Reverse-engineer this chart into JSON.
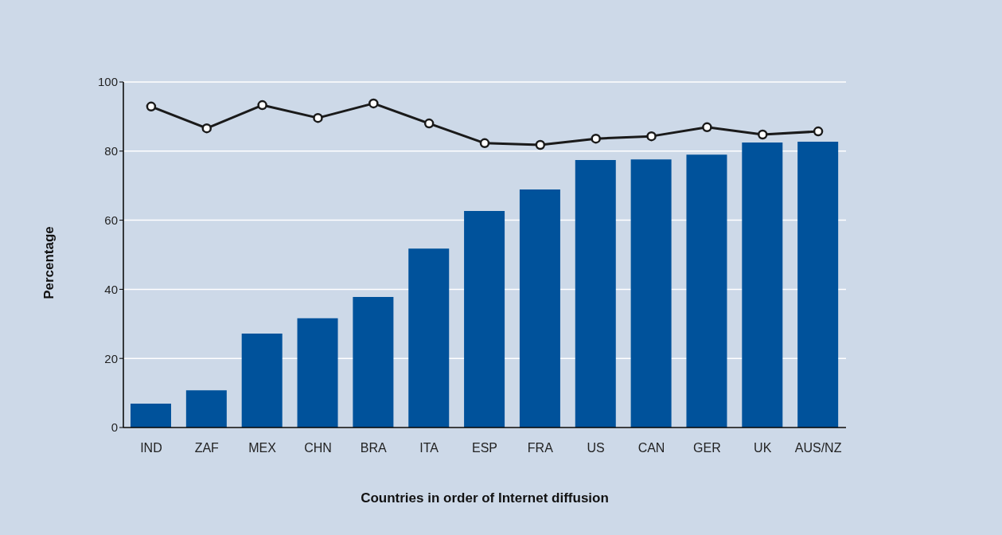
{
  "chart_data": {
    "type": "bar",
    "xlabel": "Countries in order of Internet diffusion",
    "ylabel": "Percentage",
    "categories": [
      "IND",
      "ZAF",
      "MEX",
      "CHN",
      "BRA",
      "ITA",
      "ESP",
      "FRA",
      "US",
      "CAN",
      "GER",
      "UK",
      "AUS/NZ"
    ],
    "series": [
      {
        "color": "#00529b",
        "values": [
          6.9,
          10.8,
          27.2,
          31.6,
          37.8,
          51.8,
          62.7,
          68.9,
          77.4,
          77.6,
          79.0,
          82.5,
          82.7
        ]
      },
      {
        "type": "line",
        "color": "#1a1a1a",
        "values": [
          92.9,
          86.6,
          93.3,
          89.6,
          93.8,
          88.0,
          82.3,
          81.8,
          83.6,
          84.3,
          86.9,
          84.8,
          85.7
        ]
      }
    ],
    "ylim": [
      0,
      100
    ],
    "yticks": [
      0,
      20,
      40,
      60,
      80,
      100
    ],
    "grid": "y",
    "legend": false,
    "marker": "circle",
    "line_style": "solid"
  }
}
